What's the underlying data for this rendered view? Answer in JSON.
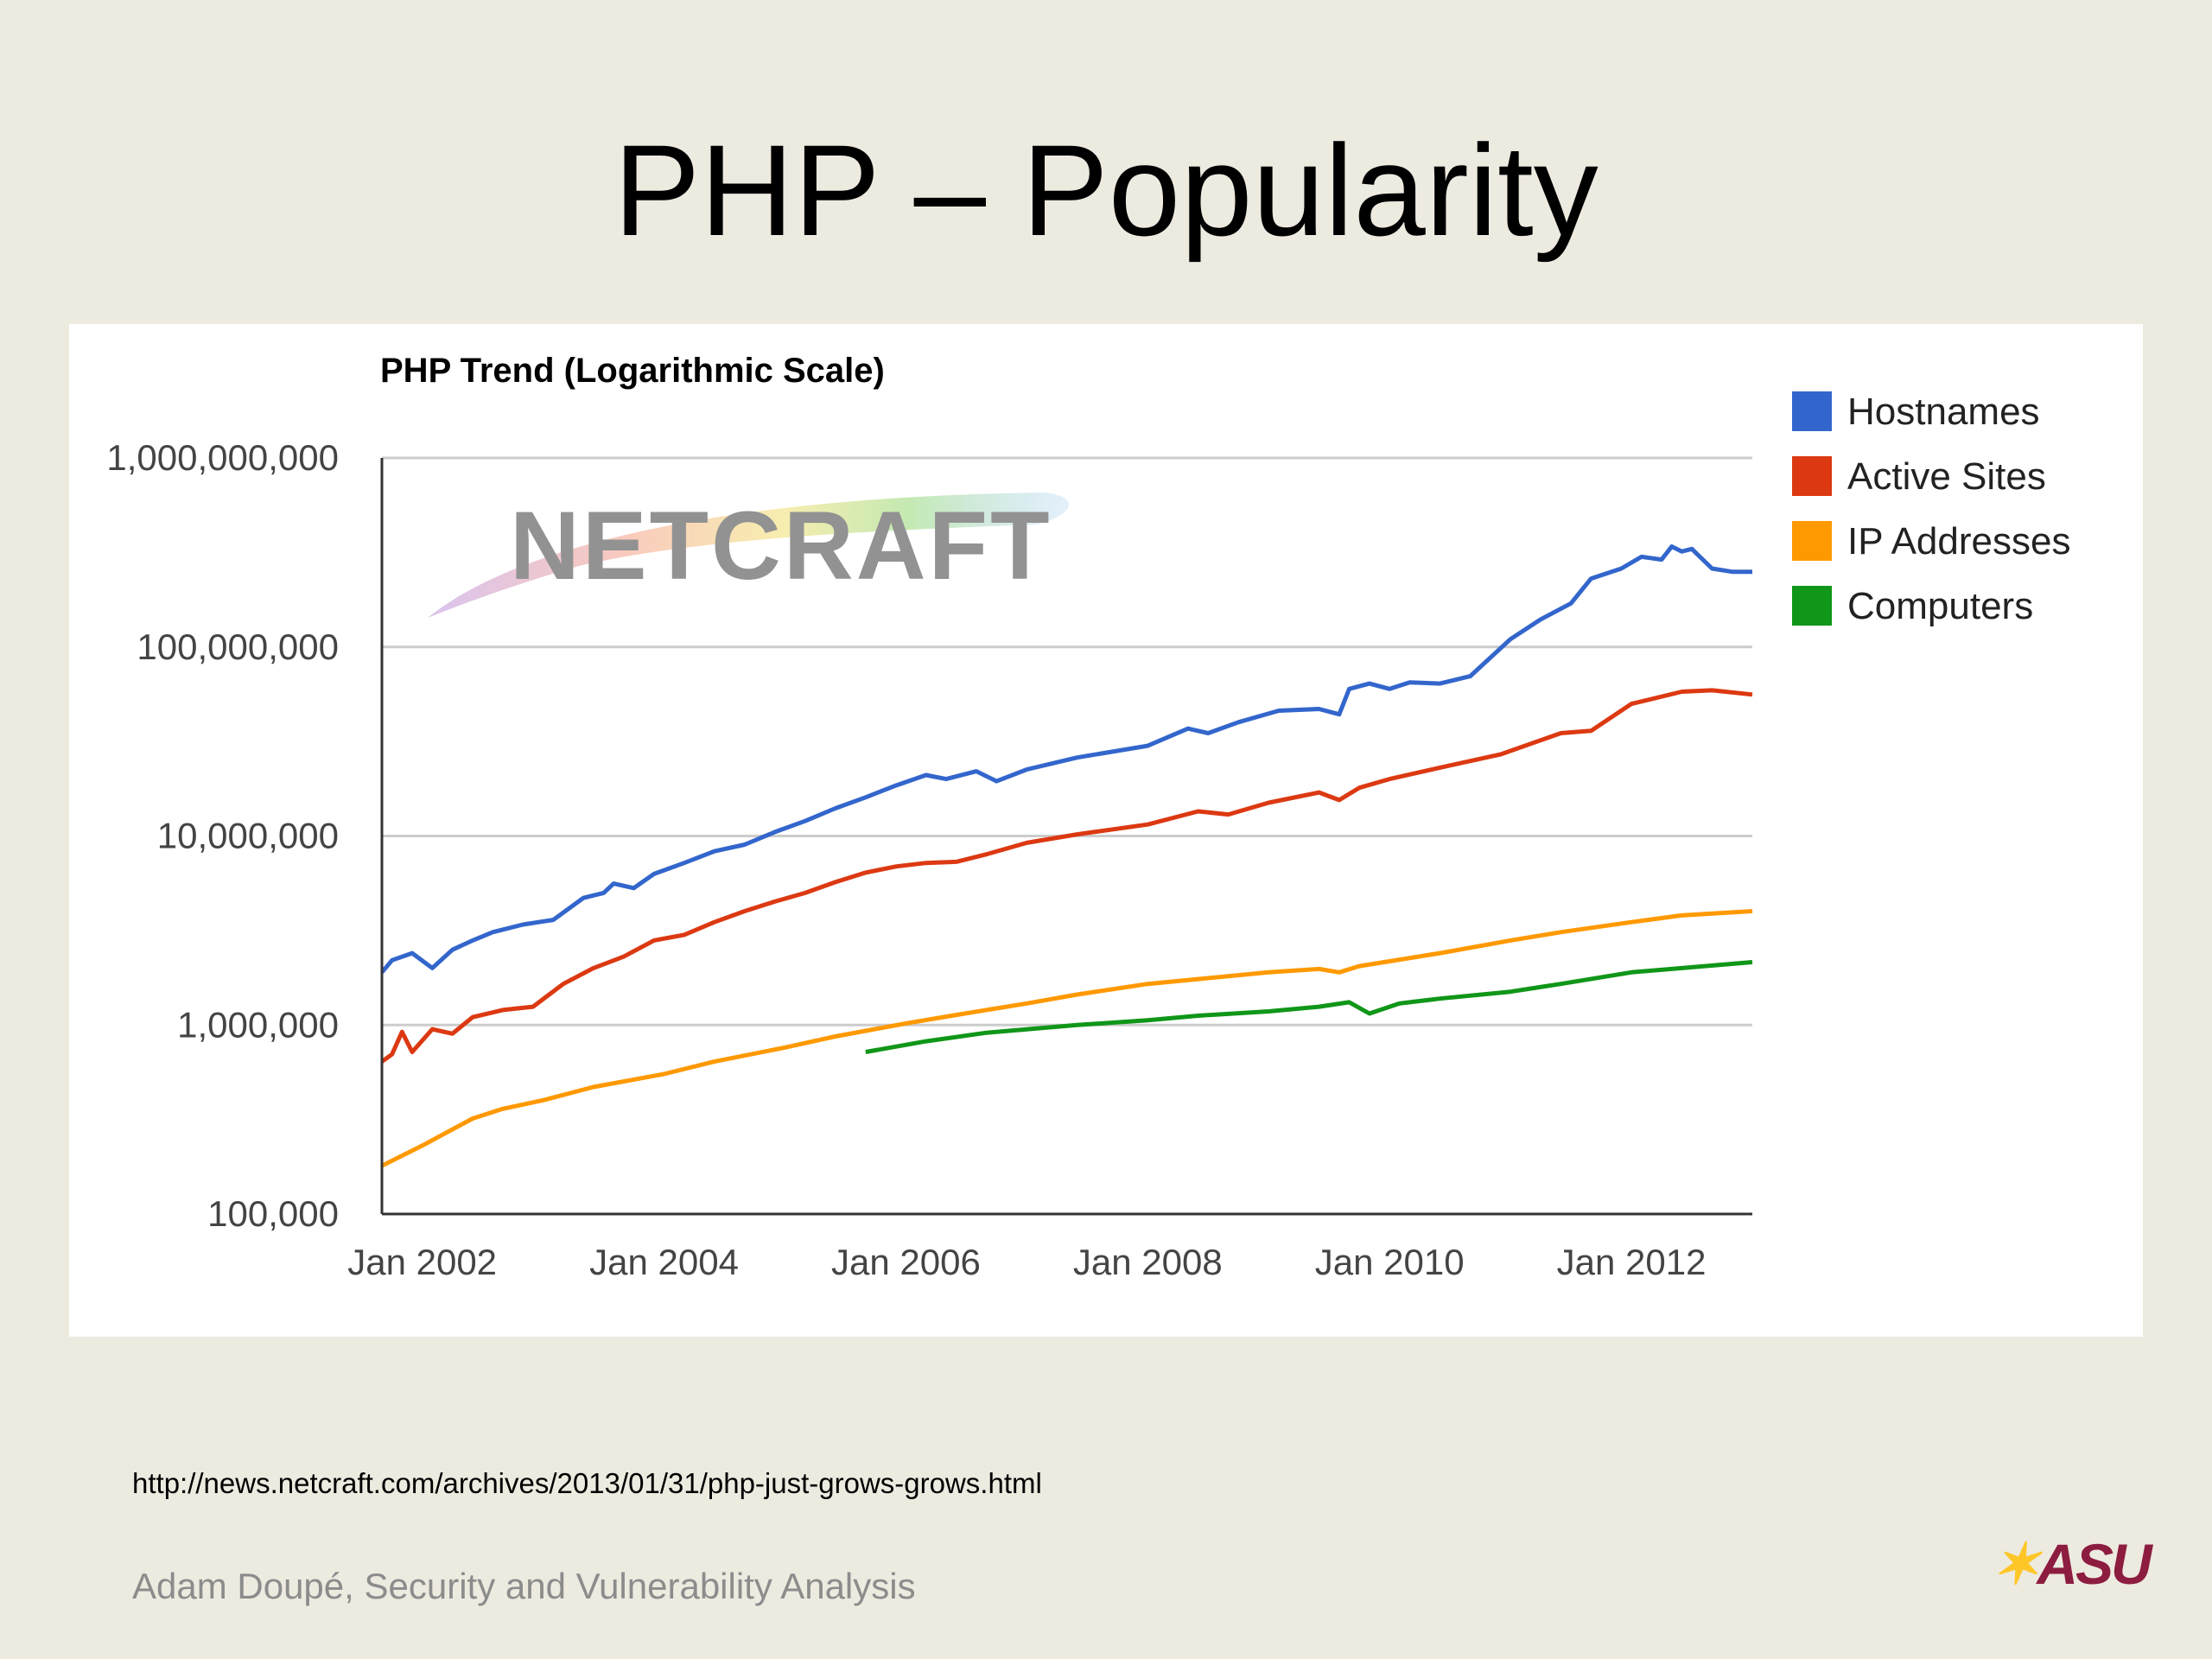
{
  "slide": {
    "title": "PHP – Popularity",
    "source_url": "http://news.netcraft.com/archives/2013/01/31/php-just-grows-grows.html",
    "footer": "Adam Doupé, Security and Vulnerability Analysis",
    "logo_text": "ASU",
    "watermark_text": "NETCRAFT"
  },
  "chart_data": {
    "type": "line",
    "title": "PHP Trend (Logarithmic Scale)",
    "y_scale": "log",
    "ylim": [
      100000,
      1000000000
    ],
    "y_ticks": [
      {
        "value": 1000000000,
        "label": "1,000,000,000"
      },
      {
        "value": 100000000,
        "label": "100,000,000"
      },
      {
        "value": 10000000,
        "label": "10,000,000"
      },
      {
        "value": 1000000,
        "label": "1,000,000"
      },
      {
        "value": 100000,
        "label": "100,000"
      }
    ],
    "xlim": [
      "2001-09",
      "2013-01"
    ],
    "x_ticks": [
      {
        "value": "2002-01",
        "label": "Jan 2002"
      },
      {
        "value": "2004-01",
        "label": "Jan 2004"
      },
      {
        "value": "2006-01",
        "label": "Jan 2006"
      },
      {
        "value": "2008-01",
        "label": "Jan 2008"
      },
      {
        "value": "2010-01",
        "label": "Jan 2010"
      },
      {
        "value": "2012-01",
        "label": "Jan 2012"
      }
    ],
    "grid": true,
    "legend_position": "right",
    "series": [
      {
        "name": "Hostnames",
        "color": "#3366cc",
        "points": [
          [
            "2001-09",
            1900000
          ],
          [
            "2001-10",
            2200000
          ],
          [
            "2001-12",
            2400000
          ],
          [
            "2002-02",
            2000000
          ],
          [
            "2002-04",
            2500000
          ],
          [
            "2002-06",
            2800000
          ],
          [
            "2002-08",
            3100000
          ],
          [
            "2002-11",
            3400000
          ],
          [
            "2003-02",
            3600000
          ],
          [
            "2003-05",
            4700000
          ],
          [
            "2003-07",
            5000000
          ],
          [
            "2003-08",
            5600000
          ],
          [
            "2003-10",
            5300000
          ],
          [
            "2003-12",
            6300000
          ],
          [
            "2004-03",
            7200000
          ],
          [
            "2004-06",
            8300000
          ],
          [
            "2004-09",
            9000000
          ],
          [
            "2004-12",
            10500000
          ],
          [
            "2005-03",
            12000000
          ],
          [
            "2005-06",
            14000000
          ],
          [
            "2005-09",
            16000000
          ],
          [
            "2005-12",
            18500000
          ],
          [
            "2006-03",
            21000000
          ],
          [
            "2006-05",
            20000000
          ],
          [
            "2006-08",
            22000000
          ],
          [
            "2006-10",
            19500000
          ],
          [
            "2007-01",
            22500000
          ],
          [
            "2007-06",
            26000000
          ],
          [
            "2008-01",
            30000000
          ],
          [
            "2008-05",
            37000000
          ],
          [
            "2008-07",
            35000000
          ],
          [
            "2008-10",
            40000000
          ],
          [
            "2009-02",
            46000000
          ],
          [
            "2009-06",
            47000000
          ],
          [
            "2009-08",
            44000000
          ],
          [
            "2009-09",
            60000000
          ],
          [
            "2009-11",
            64000000
          ],
          [
            "2010-01",
            60000000
          ],
          [
            "2010-03",
            65000000
          ],
          [
            "2010-06",
            64000000
          ],
          [
            "2010-09",
            70000000
          ],
          [
            "2011-01",
            110000000
          ],
          [
            "2011-04",
            140000000
          ],
          [
            "2011-07",
            170000000
          ],
          [
            "2011-09",
            230000000
          ],
          [
            "2011-12",
            260000000
          ],
          [
            "2012-02",
            300000000
          ],
          [
            "2012-04",
            290000000
          ],
          [
            "2012-05",
            340000000
          ],
          [
            "2012-06",
            320000000
          ],
          [
            "2012-07",
            330000000
          ],
          [
            "2012-09",
            260000000
          ],
          [
            "2012-11",
            250000000
          ],
          [
            "2013-01",
            250000000
          ]
        ]
      },
      {
        "name": "Active Sites",
        "color": "#dc3912",
        "points": [
          [
            "2001-09",
            640000
          ],
          [
            "2001-10",
            700000
          ],
          [
            "2001-11",
            920000
          ],
          [
            "2001-12",
            720000
          ],
          [
            "2002-02",
            950000
          ],
          [
            "2002-04",
            900000
          ],
          [
            "2002-06",
            1100000
          ],
          [
            "2002-09",
            1200000
          ],
          [
            "2002-12",
            1250000
          ],
          [
            "2003-03",
            1650000
          ],
          [
            "2003-06",
            2000000
          ],
          [
            "2003-09",
            2300000
          ],
          [
            "2003-12",
            2800000
          ],
          [
            "2004-03",
            3000000
          ],
          [
            "2004-06",
            3500000
          ],
          [
            "2004-09",
            4000000
          ],
          [
            "2004-12",
            4500000
          ],
          [
            "2005-03",
            5000000
          ],
          [
            "2005-06",
            5700000
          ],
          [
            "2005-09",
            6400000
          ],
          [
            "2005-12",
            6900000
          ],
          [
            "2006-03",
            7200000
          ],
          [
            "2006-06",
            7300000
          ],
          [
            "2006-09",
            8000000
          ],
          [
            "2007-01",
            9200000
          ],
          [
            "2007-06",
            10200000
          ],
          [
            "2008-01",
            11500000
          ],
          [
            "2008-06",
            13500000
          ],
          [
            "2008-09",
            13000000
          ],
          [
            "2009-01",
            15000000
          ],
          [
            "2009-06",
            17000000
          ],
          [
            "2009-08",
            15500000
          ],
          [
            "2009-10",
            18000000
          ],
          [
            "2010-01",
            20000000
          ],
          [
            "2010-06",
            23000000
          ],
          [
            "2010-12",
            27000000
          ],
          [
            "2011-06",
            35000000
          ],
          [
            "2011-09",
            36000000
          ],
          [
            "2012-01",
            50000000
          ],
          [
            "2012-06",
            58000000
          ],
          [
            "2012-09",
            59000000
          ],
          [
            "2013-01",
            56000000
          ]
        ]
      },
      {
        "name": "IP Addresses",
        "color": "#ff9900",
        "points": [
          [
            "2001-09",
            180000
          ],
          [
            "2002-01",
            230000
          ],
          [
            "2002-06",
            320000
          ],
          [
            "2002-09",
            360000
          ],
          [
            "2003-01",
            400000
          ],
          [
            "2003-06",
            470000
          ],
          [
            "2004-01",
            550000
          ],
          [
            "2004-06",
            640000
          ],
          [
            "2005-01",
            760000
          ],
          [
            "2005-06",
            870000
          ],
          [
            "2006-01",
            1020000
          ],
          [
            "2006-06",
            1130000
          ],
          [
            "2007-01",
            1300000
          ],
          [
            "2007-06",
            1450000
          ],
          [
            "2008-01",
            1650000
          ],
          [
            "2008-06",
            1750000
          ],
          [
            "2009-01",
            1900000
          ],
          [
            "2009-06",
            1980000
          ],
          [
            "2009-08",
            1900000
          ],
          [
            "2009-10",
            2050000
          ],
          [
            "2010-06",
            2400000
          ],
          [
            "2011-01",
            2800000
          ],
          [
            "2011-06",
            3100000
          ],
          [
            "2012-01",
            3500000
          ],
          [
            "2012-06",
            3800000
          ],
          [
            "2013-01",
            4000000
          ]
        ]
      },
      {
        "name": "Computers",
        "color": "#109618",
        "points": [
          [
            "2005-09",
            720000
          ],
          [
            "2006-03",
            820000
          ],
          [
            "2006-09",
            910000
          ],
          [
            "2007-06",
            1000000
          ],
          [
            "2008-01",
            1060000
          ],
          [
            "2008-06",
            1120000
          ],
          [
            "2009-01",
            1180000
          ],
          [
            "2009-06",
            1250000
          ],
          [
            "2009-09",
            1320000
          ],
          [
            "2009-11",
            1150000
          ],
          [
            "2010-02",
            1300000
          ],
          [
            "2010-06",
            1380000
          ],
          [
            "2011-01",
            1500000
          ],
          [
            "2011-06",
            1650000
          ],
          [
            "2012-01",
            1900000
          ],
          [
            "2012-06",
            2000000
          ],
          [
            "2013-01",
            2150000
          ]
        ]
      }
    ]
  }
}
